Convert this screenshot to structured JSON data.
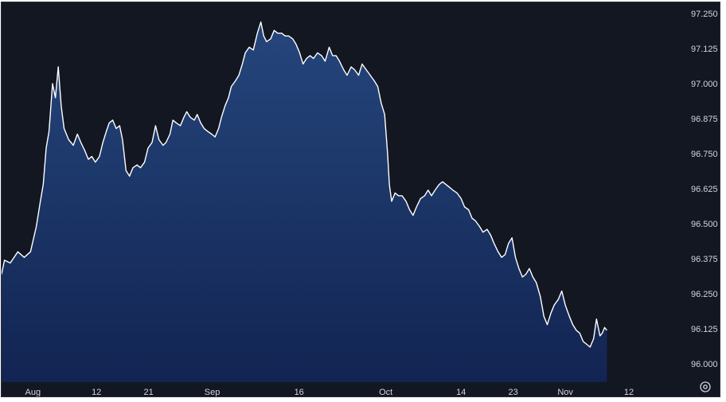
{
  "chart_data": {
    "type": "area",
    "title": "",
    "xlabel": "",
    "ylabel": "",
    "y_ticks": [
      "97.250",
      "97.125",
      "97.000",
      "96.875",
      "96.750",
      "96.625",
      "96.500",
      "96.375",
      "96.250",
      "96.125",
      "96.000"
    ],
    "x_ticks": [
      {
        "label": "Aug",
        "day": 0
      },
      {
        "label": "12",
        "day": 11
      },
      {
        "label": "21",
        "day": 20
      },
      {
        "label": "Sep",
        "day": 31
      },
      {
        "label": "16",
        "day": 46
      },
      {
        "label": "Oct",
        "day": 61
      },
      {
        "label": "14",
        "day": 74
      },
      {
        "label": "23",
        "day": 83
      },
      {
        "label": "Nov",
        "day": 92
      },
      {
        "label": "12",
        "day": 103
      }
    ],
    "ylim": [
      95.935,
      97.29
    ],
    "xlim": [
      -5.4,
      111.8
    ],
    "grid": false,
    "colors": {
      "background": "#131722",
      "line": "#ffffff",
      "fill_top": "#25467c",
      "fill_bottom": "#122452",
      "axis_text": "#d1d4dc"
    },
    "series": [
      {
        "name": "",
        "points": [
          [
            -5.4,
            96.32
          ],
          [
            -4.9,
            96.37
          ],
          [
            -3.9,
            96.36
          ],
          [
            -2.6,
            96.4
          ],
          [
            -1.5,
            96.38
          ],
          [
            -0.4,
            96.4
          ],
          [
            0.6,
            96.49
          ],
          [
            1.3,
            96.58
          ],
          [
            1.8,
            96.64
          ],
          [
            2.3,
            96.77
          ],
          [
            2.8,
            96.83
          ],
          [
            3.4,
            97.0
          ],
          [
            3.9,
            96.95
          ],
          [
            4.4,
            97.06
          ],
          [
            4.9,
            96.92
          ],
          [
            5.4,
            96.84
          ],
          [
            6.2,
            96.8
          ],
          [
            7.0,
            96.78
          ],
          [
            7.7,
            96.82
          ],
          [
            8.3,
            96.79
          ],
          [
            9.0,
            96.76
          ],
          [
            9.6,
            96.73
          ],
          [
            10.2,
            96.74
          ],
          [
            10.8,
            96.72
          ],
          [
            11.5,
            96.74
          ],
          [
            12.1,
            96.79
          ],
          [
            12.7,
            96.83
          ],
          [
            13.2,
            96.86
          ],
          [
            13.8,
            96.87
          ],
          [
            14.4,
            96.84
          ],
          [
            15.0,
            96.85
          ],
          [
            15.5,
            96.8
          ],
          [
            16.1,
            96.69
          ],
          [
            16.7,
            96.67
          ],
          [
            17.3,
            96.7
          ],
          [
            18.0,
            96.71
          ],
          [
            18.6,
            96.7
          ],
          [
            19.3,
            96.72
          ],
          [
            19.9,
            96.77
          ],
          [
            20.6,
            96.79
          ],
          [
            21.2,
            96.85
          ],
          [
            21.8,
            96.8
          ],
          [
            22.5,
            96.78
          ],
          [
            23.0,
            96.79
          ],
          [
            23.7,
            96.82
          ],
          [
            24.2,
            96.87
          ],
          [
            24.8,
            96.86
          ],
          [
            25.5,
            96.85
          ],
          [
            26.1,
            96.88
          ],
          [
            26.6,
            96.9
          ],
          [
            27.2,
            96.88
          ],
          [
            27.9,
            96.87
          ],
          [
            28.4,
            96.89
          ],
          [
            29.0,
            96.86
          ],
          [
            29.6,
            96.84
          ],
          [
            30.2,
            96.83
          ],
          [
            30.9,
            96.82
          ],
          [
            31.5,
            96.81
          ],
          [
            32.1,
            96.84
          ],
          [
            32.6,
            96.88
          ],
          [
            33.2,
            96.92
          ],
          [
            33.8,
            96.95
          ],
          [
            34.3,
            96.99
          ],
          [
            35.0,
            97.01
          ],
          [
            35.6,
            97.03
          ],
          [
            36.2,
            97.07
          ],
          [
            36.7,
            97.11
          ],
          [
            37.4,
            97.13
          ],
          [
            38.1,
            97.12
          ],
          [
            38.8,
            97.18
          ],
          [
            39.4,
            97.22
          ],
          [
            39.9,
            97.17
          ],
          [
            40.4,
            97.15
          ],
          [
            41.1,
            97.16
          ],
          [
            41.7,
            97.19
          ],
          [
            42.3,
            97.18
          ],
          [
            43.0,
            97.18
          ],
          [
            43.6,
            97.17
          ],
          [
            44.2,
            97.17
          ],
          [
            44.9,
            97.16
          ],
          [
            45.5,
            97.14
          ],
          [
            46.1,
            97.11
          ],
          [
            46.7,
            97.07
          ],
          [
            47.3,
            97.09
          ],
          [
            47.9,
            97.1
          ],
          [
            48.5,
            97.09
          ],
          [
            49.2,
            97.11
          ],
          [
            49.9,
            97.1
          ],
          [
            50.5,
            97.08
          ],
          [
            51.2,
            97.13
          ],
          [
            51.8,
            97.1
          ],
          [
            52.4,
            97.1
          ],
          [
            53.0,
            97.08
          ],
          [
            53.7,
            97.05
          ],
          [
            54.3,
            97.03
          ],
          [
            55.0,
            97.06
          ],
          [
            55.6,
            97.05
          ],
          [
            56.3,
            97.03
          ],
          [
            56.9,
            97.07
          ],
          [
            57.6,
            97.05
          ],
          [
            58.3,
            97.03
          ],
          [
            59.0,
            97.01
          ],
          [
            59.6,
            96.99
          ],
          [
            60.2,
            96.93
          ],
          [
            60.8,
            96.89
          ],
          [
            61.3,
            96.75
          ],
          [
            61.6,
            96.64
          ],
          [
            62.0,
            96.58
          ],
          [
            62.6,
            96.61
          ],
          [
            63.2,
            96.6
          ],
          [
            63.8,
            96.6
          ],
          [
            64.5,
            96.58
          ],
          [
            65.1,
            96.55
          ],
          [
            65.7,
            96.53
          ],
          [
            66.3,
            96.56
          ],
          [
            67.0,
            96.59
          ],
          [
            67.7,
            96.6
          ],
          [
            68.3,
            96.62
          ],
          [
            68.9,
            96.6
          ],
          [
            69.5,
            96.62
          ],
          [
            70.2,
            96.64
          ],
          [
            70.8,
            96.65
          ],
          [
            71.4,
            96.64
          ],
          [
            72.0,
            96.63
          ],
          [
            72.6,
            96.62
          ],
          [
            73.3,
            96.61
          ],
          [
            74.0,
            96.59
          ],
          [
            74.6,
            96.56
          ],
          [
            75.3,
            96.55
          ],
          [
            75.9,
            96.52
          ],
          [
            76.5,
            96.51
          ],
          [
            77.2,
            96.49
          ],
          [
            77.8,
            96.47
          ],
          [
            78.5,
            96.48
          ],
          [
            79.1,
            96.46
          ],
          [
            79.7,
            96.43
          ],
          [
            80.4,
            96.4
          ],
          [
            81.0,
            96.38
          ],
          [
            81.6,
            96.39
          ],
          [
            82.2,
            96.43
          ],
          [
            82.8,
            96.45
          ],
          [
            83.4,
            96.38
          ],
          [
            84.0,
            96.34
          ],
          [
            84.6,
            96.31
          ],
          [
            85.2,
            96.32
          ],
          [
            85.8,
            96.34
          ],
          [
            86.4,
            96.31
          ],
          [
            87.0,
            96.29
          ],
          [
            87.7,
            96.24
          ],
          [
            88.3,
            96.17
          ],
          [
            88.9,
            96.14
          ],
          [
            89.5,
            96.18
          ],
          [
            90.1,
            96.21
          ],
          [
            90.8,
            96.23
          ],
          [
            91.4,
            96.26
          ],
          [
            92.0,
            96.21
          ],
          [
            92.7,
            96.17
          ],
          [
            93.3,
            96.14
          ],
          [
            93.9,
            96.12
          ],
          [
            94.5,
            96.11
          ],
          [
            95.1,
            96.08
          ],
          [
            95.7,
            96.07
          ],
          [
            96.3,
            96.06
          ],
          [
            96.9,
            96.09
          ],
          [
            97.4,
            96.16
          ],
          [
            98.0,
            96.1
          ],
          [
            98.4,
            96.11
          ],
          [
            98.8,
            96.13
          ],
          [
            99.2,
            96.12
          ]
        ]
      }
    ]
  }
}
